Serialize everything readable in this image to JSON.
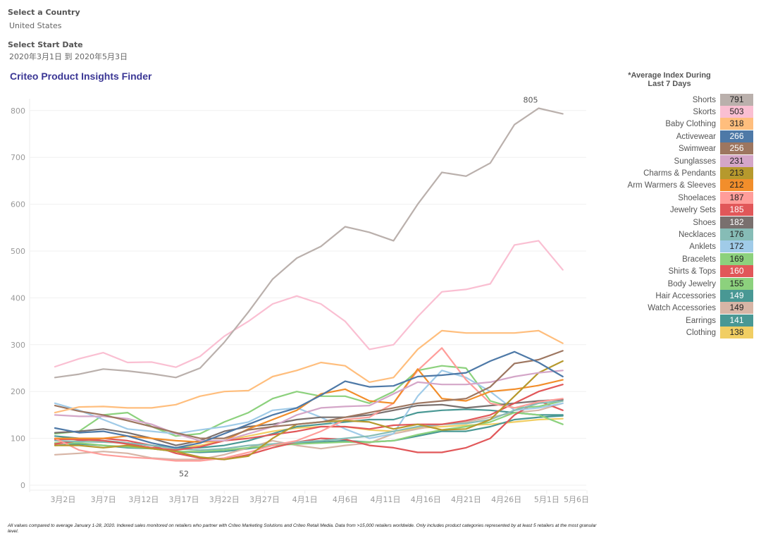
{
  "filters": {
    "country_label": "Select a Country",
    "country_value": "United States",
    "date_label": "Select Start Date",
    "date_value": "2020年3月1日 到 2020年5月3日"
  },
  "title": "Criteo Product Insights Finder",
  "legend": {
    "title_line1": "*Average Index During",
    "title_line2": "Last 7 Days",
    "items": [
      {
        "name": "Shorts",
        "value": "791",
        "color": "#bab0ac",
        "light": false
      },
      {
        "name": "Skorts",
        "value": "503",
        "color": "#fabfd2",
        "light": false
      },
      {
        "name": "Baby Clothing",
        "value": "318",
        "color": "#ffbe7d",
        "light": false
      },
      {
        "name": "Activewear",
        "value": "266",
        "color": "#4e79a7",
        "light": true
      },
      {
        "name": "Swimwear",
        "value": "256",
        "color": "#9d7660",
        "light": true
      },
      {
        "name": "Sunglasses",
        "value": "231",
        "color": "#d4a6c8",
        "light": false
      },
      {
        "name": "Charms & Pendants",
        "value": "213",
        "color": "#b6992d",
        "light": false
      },
      {
        "name": "Arm Warmers & Sleeves",
        "value": "212",
        "color": "#f28e2b",
        "light": false
      },
      {
        "name": "Shoelaces",
        "value": "187",
        "color": "#ff9d9a",
        "light": false
      },
      {
        "name": "Jewelry Sets",
        "value": "185",
        "color": "#e15759",
        "light": true
      },
      {
        "name": "Shoes",
        "value": "182",
        "color": "#79706e",
        "light": true
      },
      {
        "name": "Necklaces",
        "value": "176",
        "color": "#86bcb6",
        "light": false
      },
      {
        "name": "Anklets",
        "value": "172",
        "color": "#a0cbe8",
        "light": false
      },
      {
        "name": "Bracelets",
        "value": "169",
        "color": "#8cd17d",
        "light": false
      },
      {
        "name": "Shirts & Tops",
        "value": "160",
        "color": "#e15759",
        "light": true
      },
      {
        "name": "Body Jewelry",
        "value": "155",
        "color": "#8cd17d",
        "light": false
      },
      {
        "name": "Hair Accessories",
        "value": "149",
        "color": "#499894",
        "light": true
      },
      {
        "name": "Watch Accessories",
        "value": "149",
        "color": "#d7b5a6",
        "light": false
      },
      {
        "name": "Earrings",
        "value": "141",
        "color": "#499894",
        "light": true
      },
      {
        "name": "Clothing",
        "value": "138",
        "color": "#f1ce63",
        "light": false
      }
    ]
  },
  "footnote": "All values compared to average January 1-28, 2020. Indexed sales monitored on retailers who partner with Criteo Marketing Solutions and Criteo Retail Media. Data from >15,000 retailers worldwide. Only includes product categories represented by at least 5 retailers at the most granular level.",
  "chart_data": {
    "type": "line",
    "title": "Criteo Product Insights Finder",
    "xlabel": "",
    "ylabel": "",
    "x_start": "2020-03-01",
    "x_step_days": 3,
    "xlim_days": [
      -2,
      66
    ],
    "ylim": [
      0,
      830
    ],
    "y_ticks": [
      0,
      100,
      200,
      300,
      400,
      500,
      600,
      700,
      800
    ],
    "x_tick_labels": [
      "3月2日",
      "3月7日",
      "3月12日",
      "3月17日",
      "3月22日",
      "3月27日",
      "4月1日",
      "4月6日",
      "4月11日",
      "4月16日",
      "4月21日",
      "4月26日",
      "5月1日",
      "5月6日"
    ],
    "x_tick_days": [
      1,
      6,
      11,
      16,
      21,
      26,
      31,
      36,
      41,
      46,
      51,
      56,
      61,
      66
    ],
    "grid": true,
    "annotations": [
      {
        "text": "805",
        "series": "Shorts",
        "day": 59,
        "value": 805
      },
      {
        "text": "52",
        "series": "Shoelaces",
        "day": 16,
        "value": 52
      }
    ],
    "series": [
      {
        "name": "Shorts",
        "color": "#bab0ac",
        "values": [
          230,
          237,
          248,
          244,
          238,
          230,
          250,
          305,
          370,
          440,
          485,
          510,
          552,
          540,
          522,
          600,
          668,
          660,
          688,
          770,
          805,
          793
        ]
      },
      {
        "name": "Skorts",
        "color": "#fabfd2",
        "values": [
          253,
          270,
          283,
          262,
          263,
          252,
          275,
          318,
          350,
          387,
          404,
          387,
          350,
          290,
          300,
          360,
          413,
          418,
          430,
          513,
          522,
          460
        ]
      },
      {
        "name": "Baby Clothing",
        "color": "#ffbe7d",
        "values": [
          155,
          167,
          168,
          165,
          165,
          172,
          190,
          200,
          202,
          232,
          245,
          262,
          255,
          220,
          230,
          290,
          330,
          325,
          325,
          325,
          330,
          303
        ]
      },
      {
        "name": "Activewear",
        "color": "#4e79a7",
        "values": [
          122,
          112,
          115,
          105,
          90,
          80,
          90,
          110,
          130,
          150,
          165,
          192,
          222,
          210,
          212,
          232,
          235,
          240,
          265,
          285,
          262,
          232
        ]
      },
      {
        "name": "Swimwear",
        "color": "#9d7660",
        "values": [
          170,
          158,
          150,
          138,
          125,
          112,
          100,
          100,
          118,
          125,
          130,
          135,
          145,
          155,
          165,
          175,
          180,
          185,
          210,
          260,
          268,
          287
        ]
      },
      {
        "name": "Sunglasses",
        "color": "#d4a6c8",
        "values": [
          150,
          147,
          147,
          142,
          130,
          110,
          95,
          95,
          110,
          125,
          150,
          165,
          168,
          170,
          195,
          220,
          215,
          215,
          220,
          232,
          240,
          245
        ]
      },
      {
        "name": "Charms & Pendants",
        "color": "#b6992d",
        "values": [
          85,
          85,
          80,
          85,
          78,
          72,
          60,
          55,
          62,
          100,
          130,
          135,
          138,
          135,
          120,
          130,
          118,
          120,
          140,
          190,
          240,
          265
        ]
      },
      {
        "name": "Arm Warmers & Sleeves",
        "color": "#f28e2b",
        "values": [
          100,
          100,
          100,
          105,
          100,
          95,
          92,
          95,
          120,
          140,
          160,
          195,
          205,
          180,
          175,
          248,
          185,
          180,
          200,
          205,
          213,
          225
        ]
      },
      {
        "name": "Shoelaces",
        "color": "#ff9d9a",
        "values": [
          100,
          75,
          65,
          60,
          57,
          52,
          52,
          58,
          70,
          85,
          95,
          115,
          140,
          145,
          175,
          245,
          293,
          225,
          175,
          165,
          178,
          185
        ]
      },
      {
        "name": "Jewelry Sets",
        "color": "#e15759",
        "values": [
          98,
          98,
          95,
          88,
          80,
          75,
          82,
          95,
          100,
          108,
          115,
          125,
          125,
          120,
          128,
          130,
          130,
          138,
          150,
          175,
          200,
          215
        ]
      },
      {
        "name": "Shoes",
        "color": "#79706e",
        "values": [
          112,
          115,
          120,
          112,
          100,
          85,
          95,
          115,
          125,
          130,
          140,
          145,
          145,
          150,
          160,
          170,
          172,
          165,
          170,
          175,
          180,
          183
        ]
      },
      {
        "name": "Necklaces",
        "color": "#86bcb6",
        "values": [
          95,
          93,
          92,
          90,
          85,
          78,
          75,
          78,
          85,
          88,
          92,
          95,
          100,
          105,
          115,
          125,
          130,
          132,
          140,
          160,
          175,
          180
        ]
      },
      {
        "name": "Anklets",
        "color": "#a0cbe8",
        "values": [
          175,
          160,
          140,
          120,
          115,
          110,
          118,
          125,
          135,
          160,
          165,
          145,
          120,
          100,
          110,
          190,
          245,
          230,
          200,
          160,
          165,
          175
        ]
      },
      {
        "name": "Bracelets",
        "color": "#8cd17d",
        "values": [
          110,
          115,
          150,
          155,
          125,
          105,
          110,
          135,
          155,
          185,
          200,
          190,
          190,
          175,
          200,
          245,
          255,
          250,
          180,
          165,
          168,
          180
        ]
      },
      {
        "name": "Shirts & Tops",
        "color": "#e15759",
        "values": [
          88,
          95,
          100,
          95,
          85,
          68,
          58,
          55,
          65,
          80,
          92,
          100,
          98,
          85,
          80,
          70,
          70,
          80,
          100,
          150,
          180,
          160
        ]
      },
      {
        "name": "Body Jewelry",
        "color": "#8cd17d",
        "values": [
          90,
          90,
          85,
          82,
          78,
          72,
          72,
          75,
          80,
          85,
          88,
          90,
          92,
          92,
          95,
          108,
          118,
          125,
          135,
          155,
          150,
          130
        ]
      },
      {
        "name": "Hair Accessories",
        "color": "#499894",
        "values": [
          105,
          100,
          95,
          90,
          85,
          80,
          80,
          85,
          95,
          110,
          125,
          130,
          135,
          140,
          140,
          155,
          160,
          162,
          160,
          155,
          150,
          150
        ]
      },
      {
        "name": "Watch Accessories",
        "color": "#d7b5a6",
        "values": [
          65,
          68,
          72,
          68,
          58,
          55,
          55,
          65,
          80,
          95,
          85,
          78,
          85,
          90,
          110,
          120,
          130,
          135,
          145,
          155,
          160,
          175
        ]
      },
      {
        "name": "Earrings",
        "color": "#499894",
        "values": [
          85,
          88,
          85,
          80,
          78,
          72,
          70,
          72,
          78,
          85,
          90,
          92,
          95,
          92,
          95,
          105,
          115,
          115,
          125,
          140,
          145,
          148
        ]
      },
      {
        "name": "Clothing",
        "color": "#f1ce63",
        "values": [
          90,
          95,
          92,
          90,
          85,
          80,
          85,
          95,
          105,
          115,
          122,
          125,
          125,
          118,
          115,
          122,
          125,
          128,
          130,
          135,
          140,
          142
        ]
      }
    ]
  }
}
